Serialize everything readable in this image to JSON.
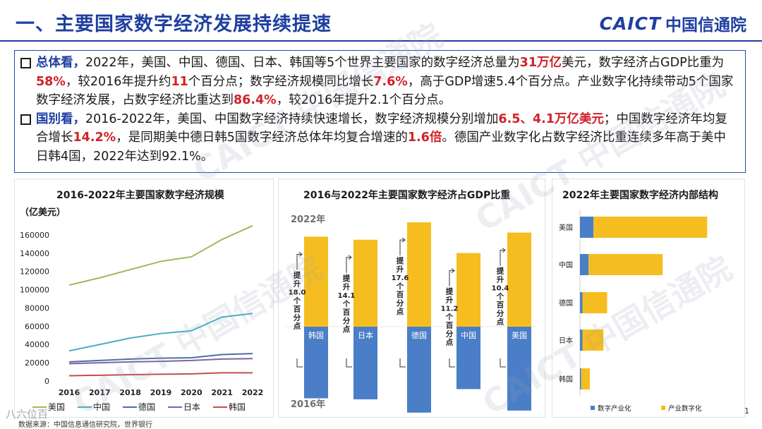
{
  "header": {
    "title": "一、主要国家数字经济发展持续提速",
    "logo_en": "CAICT",
    "logo_cn": "中国信通院"
  },
  "summary": {
    "p1": [
      {
        "t": "总体看，",
        "s": "blue"
      },
      {
        "t": "2022年，美国、中国、德国、日本、韩国等5个世界主要国家的数字经济总量为",
        "s": ""
      },
      {
        "t": "31万亿",
        "s": "red"
      },
      {
        "t": "美元，数字经济占GDP比重为",
        "s": ""
      },
      {
        "t": "58%",
        "s": "red"
      },
      {
        "t": "，较2016年提升约",
        "s": ""
      },
      {
        "t": "11",
        "s": "red"
      },
      {
        "t": "个百分点；数字经济规模同比增长",
        "s": ""
      },
      {
        "t": "7.6%",
        "s": "red"
      },
      {
        "t": "，高于GDP增速5.4个百分点。产业数字化持续带动5个国家数字经济发展，占数字经济比重达到",
        "s": ""
      },
      {
        "t": "86.4%",
        "s": "red"
      },
      {
        "t": "，较2016年提升2.1个百分点。",
        "s": ""
      }
    ],
    "p2": [
      {
        "t": "国别看，",
        "s": "blue"
      },
      {
        "t": "2016-2022年，美国、中国数字经济持续快速增长，数字经济规模分别增加",
        "s": ""
      },
      {
        "t": "6.5、4.1万亿美元",
        "s": "red"
      },
      {
        "t": "；中国数字经济年均复合增长",
        "s": ""
      },
      {
        "t": "14.2%",
        "s": "red"
      },
      {
        "t": "，是同期美中德日韩5国数字经济总体年均复合增速的",
        "s": ""
      },
      {
        "t": "1.6倍",
        "s": "red"
      },
      {
        "t": "。德国产业数字化占数字经济比重连续多年高于美中日韩4国，2022年达到92.1%。",
        "s": ""
      }
    ]
  },
  "chart_data": [
    {
      "type": "line",
      "title": "2016-2022年主要国家数字经济规模",
      "ylabel": "（亿美元）",
      "x": [
        "2016",
        "2017",
        "2018",
        "2019",
        "2020",
        "2021",
        "2022"
      ],
      "ylim": [
        0,
        180000
      ],
      "yticks": [
        "0",
        "20000",
        "40000",
        "60000",
        "80000",
        "100000",
        "120000",
        "140000",
        "160000",
        "180000"
      ],
      "legend_position": "bottom",
      "series": [
        {
          "name": "美国",
          "color": "#9bbb59",
          "values": [
            105000,
            113000,
            122000,
            131000,
            136000,
            155000,
            170000
          ]
        },
        {
          "name": "中国",
          "color": "#4bacc6",
          "values": [
            33000,
            40000,
            47000,
            52000,
            55000,
            70000,
            74000
          ]
        },
        {
          "name": "德国",
          "color": "#4f6ea8",
          "values": [
            21000,
            22500,
            24000,
            25000,
            25500,
            29000,
            30000
          ]
        },
        {
          "name": "日本",
          "color": "#7f63a8",
          "values": [
            19000,
            20000,
            21000,
            21500,
            22500,
            24000,
            24500
          ]
        },
        {
          "name": "韩国",
          "color": "#c0504d",
          "values": [
            5800,
            6300,
            7000,
            7400,
            7800,
            9000,
            9000
          ]
        }
      ]
    },
    {
      "type": "bar",
      "title": "2016与2022年主要国家数字经济占GDP比重",
      "label_top": "2022年",
      "label_bottom": "2016年",
      "categories": [
        "韩国",
        "日本",
        "德国",
        "中国",
        "美国"
      ],
      "series": [
        {
          "name": "2022年",
          "color": "#f5bd1f",
          "values": [
            88,
            85,
            102,
            72,
            92
          ]
        },
        {
          "name": "2016年",
          "color": "#4a7ec7",
          "values": [
            70,
            71,
            84,
            61,
            82
          ]
        }
      ],
      "annotations": [
        {
          "text": [
            "提",
            "升",
            "18.0",
            "个",
            "百",
            "分",
            "点"
          ]
        },
        {
          "text": [
            "提",
            "升",
            "14.1",
            "个",
            "百",
            "分",
            "点"
          ]
        },
        {
          "text": [
            "提",
            "升",
            "17.6",
            "个",
            "百",
            "分",
            "点"
          ]
        },
        {
          "text": [
            "提",
            "升",
            "11.2",
            "个",
            "百",
            "分",
            "点"
          ]
        },
        {
          "text": [
            "提",
            "升",
            "10.4",
            "个",
            "百",
            "分",
            "点"
          ]
        }
      ]
    },
    {
      "type": "bar",
      "orientation": "horizontal",
      "stacked": true,
      "title": "2022年主要国家数字经济内部结构",
      "categories": [
        "美国",
        "中国",
        "德国",
        "日本",
        "韩国"
      ],
      "series": [
        {
          "name": "数字产业化",
          "color": "#4a7ec7",
          "values": [
            11,
            7,
            2,
            2,
            1
          ]
        },
        {
          "name": "产业数字化",
          "color": "#f5bd1f",
          "values": [
            92,
            60,
            20,
            17,
            7
          ]
        }
      ],
      "legend_position": "bottom"
    }
  ],
  "footer": {
    "source": "数据来源：中国信息通信研究院，世界银行",
    "page": "1",
    "corner_brand": "八六位百"
  },
  "watermark": "CAICT 中国信通院"
}
